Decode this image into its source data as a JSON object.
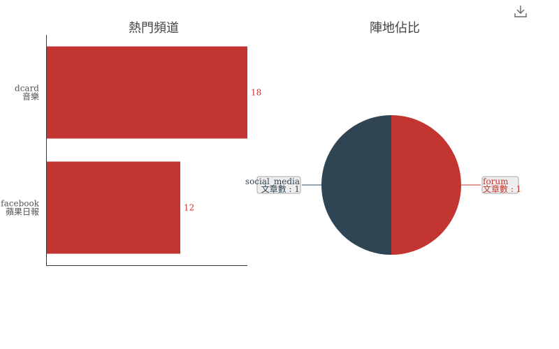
{
  "toolbar": {
    "download_icon": "download-icon"
  },
  "colors": {
    "red": "#c23531",
    "navy": "#2f4554",
    "axis": "#333333",
    "label_bg": "#eeeeee",
    "label_border": "#aaaaaa"
  },
  "chart_data": [
    {
      "type": "bar",
      "orientation": "horizontal",
      "title": "熱門頻道",
      "categories": [
        {
          "line1": "dcard",
          "line2": "音樂"
        },
        {
          "line1": "facebook",
          "line2": "蘋果日報"
        }
      ],
      "values": [
        18,
        12
      ],
      "xlim": [
        0,
        18
      ],
      "grid": false
    },
    {
      "type": "pie",
      "title": "陣地佔比",
      "slices": [
        {
          "name": "forum",
          "value": 1,
          "value_label": "文章數 : 1",
          "color": "#c23531"
        },
        {
          "name": "social_media",
          "value": 1,
          "value_label": "文章數 : 1",
          "color": "#2f4554"
        }
      ]
    }
  ]
}
